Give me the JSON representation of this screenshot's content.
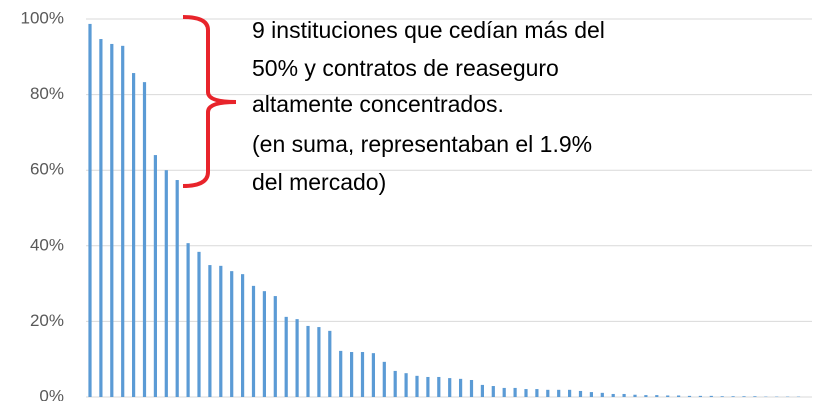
{
  "chart_data": {
    "type": "bar",
    "values": [
      98.7,
      94.7,
      93.4,
      92.9,
      85.7,
      83.3,
      64,
      60,
      57.4,
      40.7,
      38.4,
      34.9,
      34.7,
      33.3,
      32.5,
      29.4,
      28,
      26.7,
      21.2,
      20.6,
      18.8,
      18.5,
      17.5,
      12.2,
      11.9,
      11.9,
      11.6,
      9.3,
      6.9,
      6.3,
      5.6,
      5.3,
      5.3,
      5,
      4.8,
      4.5,
      3.2,
      2.9,
      2.4,
      2.4,
      2.1,
      2.1,
      1.9,
      1.9,
      1.9,
      1.6,
      1.3,
      1.1,
      0.8,
      0.8,
      0.6,
      0.5,
      0.5,
      0.4,
      0.4,
      0.3,
      0.3,
      0.3,
      0.2,
      0.2,
      0.2,
      0.2,
      0.1,
      0.1,
      0.1,
      0.1
    ],
    "color": "#5b9bd5",
    "ylim": [
      0,
      100
    ],
    "yticks": [
      {
        "value": 0,
        "label": "0%"
      },
      {
        "value": 20,
        "label": "20%"
      },
      {
        "value": 40,
        "label": "40%"
      },
      {
        "value": 60,
        "label": "60%"
      },
      {
        "value": 80,
        "label": "80%"
      },
      {
        "value": 100,
        "label": "100%"
      }
    ],
    "grid": true,
    "annotation": [
      "9 instituciones que cedían más del",
      "50% y contratos de reaseguro",
      "altamente concentrados.",
      "(en suma, representaban el 1.9%",
      "del mercado)"
    ]
  }
}
